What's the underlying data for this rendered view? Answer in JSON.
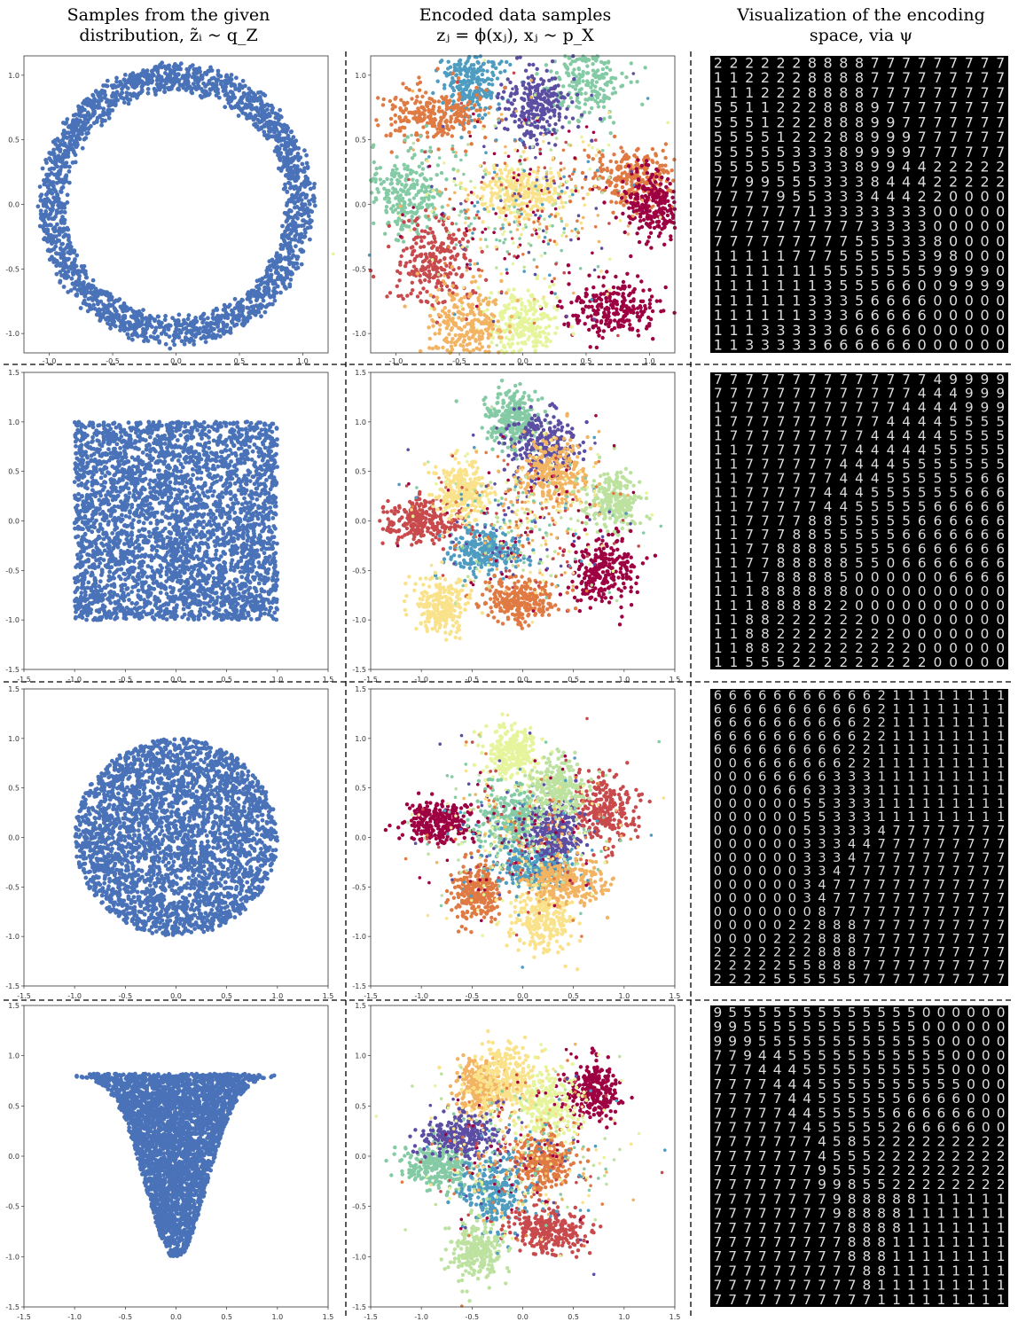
{
  "columns": [
    {
      "line1": "Samples from the given",
      "line2": "distribution, z̃ᵢ ~ q_Z"
    },
    {
      "line1": "Encoded data samples",
      "line2": "zⱼ = ϕ(xⱼ), xⱼ ~ p_X"
    },
    {
      "line1": "Visualization of the encoding",
      "line2": "space, via ψ"
    }
  ],
  "colors": {
    "prior": "#4a72b8",
    "classes": [
      "#9e0142",
      "#c84a4c",
      "#e07a43",
      "#f2b462",
      "#fae28b",
      "#e6f49c",
      "#bde2a0",
      "#84cba5",
      "#4f9cc1",
      "#5c4ea2"
    ],
    "digit_bg": "#000000",
    "digit_fg": "#dddddd"
  },
  "chart_data": [
    {
      "type": "scatter",
      "row": 1,
      "column": 1,
      "distribution": "ring",
      "xlim": [
        -1.2,
        1.2
      ],
      "ylim": [
        -1.15,
        1.15
      ],
      "xticks": [
        "-1.0",
        "-0.5",
        "0.0",
        "0.5",
        "1.0"
      ],
      "yticks": [
        "-1.0",
        "-0.5",
        "0.0",
        "0.5",
        "1.0"
      ],
      "ring_radius": [
        0.88,
        1.08
      ]
    },
    {
      "type": "scatter",
      "row": 1,
      "column": 2,
      "colored_by": "class",
      "xlim": [
        -1.2,
        1.2
      ],
      "ylim": [
        -1.15,
        1.15
      ],
      "xticks": [
        "-1.0",
        "-0.5",
        "0.0",
        "0.5",
        "1.0"
      ],
      "yticks": [
        "-1.0",
        "-0.5",
        "0.0",
        "0.5",
        "1.0"
      ],
      "clusters": [
        {
          "class": 8,
          "x": -0.4,
          "y": 0.95
        },
        {
          "class": 7,
          "x": 0.5,
          "y": 1.0
        },
        {
          "class": 2,
          "x": -0.7,
          "y": 0.7
        },
        {
          "class": 9,
          "x": 0.1,
          "y": 0.75
        },
        {
          "class": 7,
          "x": -0.9,
          "y": 0.1
        },
        {
          "class": 2,
          "x": 0.9,
          "y": 0.2
        },
        {
          "class": 0,
          "x": 1.05,
          "y": 0.0
        },
        {
          "class": 1,
          "x": -0.7,
          "y": -0.45
        },
        {
          "class": 0,
          "x": 0.7,
          "y": -0.8
        },
        {
          "class": 5,
          "x": 0.0,
          "y": -0.95
        },
        {
          "class": 3,
          "x": -0.45,
          "y": -0.95
        },
        {
          "class": 4,
          "x": 0.0,
          "y": 0.1
        }
      ]
    },
    {
      "type": "image_grid",
      "row": 1,
      "column": 3,
      "digit_rows": [
        "2222228888777777777",
        "1122228888777777777",
        "1112228888777777777",
        "5511222888977777777",
        "5551222888997777777",
        "5555122288999777777",
        "5555533389999777777",
        "5555553338994422222",
        "7799555333844422222",
        "7777955333444220000",
        "7777771333333300000",
        "7777777777333300000",
        "7777777775553380000",
        "1111177755555398000",
        "1111111555555599990",
        "1111111355566009999",
        "1111113335666600000",
        "1111113336666600000",
        "1113333366666000000",
        "1133333666666000000"
      ]
    },
    {
      "type": "scatter",
      "row": 2,
      "column": 1,
      "distribution": "uniform square",
      "xlim": [
        -1.5,
        1.5
      ],
      "ylim": [
        -1.5,
        1.5
      ],
      "xticks": [
        "-1.5",
        "-1.0",
        "-0.5",
        "0.0",
        "0.5",
        "1.0",
        "1.5"
      ],
      "yticks": [
        "-1.5",
        "-1.0",
        "-0.5",
        "0.0",
        "0.5",
        "1.0",
        "1.5"
      ]
    },
    {
      "type": "scatter",
      "row": 2,
      "column": 2,
      "colored_by": "class",
      "xlim": [
        -1.5,
        1.5
      ],
      "ylim": [
        -1.5,
        1.5
      ],
      "xticks": [
        "-1.5",
        "-1.0",
        "-0.5",
        "0.0",
        "0.5",
        "1.0",
        "1.5"
      ],
      "yticks": [
        "-1.5",
        "-1.0",
        "-0.5",
        "0.0",
        "0.5",
        "1.0",
        "1.5"
      ],
      "clusters": [
        {
          "class": 7,
          "x": -0.1,
          "y": 1.05
        },
        {
          "class": 9,
          "x": 0.2,
          "y": 0.75
        },
        {
          "class": 1,
          "x": -1.0,
          "y": 0.0
        },
        {
          "class": 4,
          "x": -0.6,
          "y": 0.3
        },
        {
          "class": 3,
          "x": 0.3,
          "y": 0.5
        },
        {
          "class": 8,
          "x": -0.4,
          "y": -0.3
        },
        {
          "class": 6,
          "x": 0.9,
          "y": 0.2
        },
        {
          "class": 0,
          "x": 0.8,
          "y": -0.5
        },
        {
          "class": 2,
          "x": -0.05,
          "y": -0.8
        },
        {
          "class": 4,
          "x": -0.8,
          "y": -0.85
        }
      ]
    },
    {
      "type": "image_grid",
      "row": 2,
      "column": 3,
      "digit_rows": [
        "7777777777777749999",
        "7777777777777444999",
        "1777777777774444999",
        "1777777777744445555",
        "1777777777444445555",
        "1177777774444455555",
        "1177777744445555555",
        "1177777744455555566",
        "1177777444555555666",
        "1177777445555566666",
        "1177778855555666666",
        "1177788555556666666",
        "1177888855556666666",
        "1177888885506666666",
        "1117888850000006666",
        "1118888880000000000",
        "1118888220000000000",
        "1188222222000000000",
        "1188222222220000000",
        "1188222222222000000",
        "1155522222222200000"
      ]
    },
    {
      "type": "scatter",
      "row": 3,
      "column": 1,
      "distribution": "uniform disk",
      "xlim": [
        -1.5,
        1.5
      ],
      "ylim": [
        -1.5,
        1.5
      ],
      "xticks": [
        "-1.5",
        "-1.0",
        "-0.5",
        "0.0",
        "0.5",
        "1.0",
        "1.5"
      ],
      "yticks": [
        "-1.5",
        "-1.0",
        "-0.5",
        "0.0",
        "0.5",
        "1.0",
        "1.5"
      ]
    },
    {
      "type": "scatter",
      "row": 3,
      "column": 2,
      "colored_by": "class",
      "xlim": [
        -1.5,
        1.5
      ],
      "ylim": [
        -1.5,
        1.5
      ],
      "xticks": [
        "-1.5",
        "-1.0",
        "-0.5",
        "0.0",
        "0.5",
        "1.0",
        "1.5"
      ],
      "yticks": [
        "-1.5",
        "-1.0",
        "-0.5",
        "0.0",
        "0.5",
        "1.0",
        "1.5"
      ],
      "clusters": [
        {
          "class": 5,
          "x": -0.1,
          "y": 0.85
        },
        {
          "class": 1,
          "x": 0.8,
          "y": 0.3
        },
        {
          "class": 0,
          "x": -0.85,
          "y": 0.15
        },
        {
          "class": 2,
          "x": -0.45,
          "y": -0.55
        },
        {
          "class": 7,
          "x": -0.1,
          "y": 0.2
        },
        {
          "class": 8,
          "x": 0.15,
          "y": -0.3
        },
        {
          "class": 9,
          "x": 0.3,
          "y": 0.05
        },
        {
          "class": 4,
          "x": 0.2,
          "y": -0.85
        },
        {
          "class": 3,
          "x": 0.45,
          "y": -0.45
        },
        {
          "class": 6,
          "x": 0.35,
          "y": 0.5
        }
      ]
    },
    {
      "type": "image_grid",
      "row": 3,
      "column": 3,
      "digit_rows": [
        "66666666666211111111",
        "66666666666211111111",
        "66666666662211111111",
        "66666666662211111111",
        "66666666622111111111",
        "00666666622111111111",
        "00066666333111111111",
        "00006663333111111111",
        "00000055333111111111",
        "00000055333111111111",
        "00000053333477777777",
        "00000033344777777777",
        "00000033347777777777",
        "00000033477777777777",
        "00000034777777777777",
        "00000034777777777777",
        "00000008777777777777",
        "00000228887777777777",
        "00002228887777777777",
        "22222228887777777777",
        "22222558887777777777",
        "22225555557777777777"
      ]
    },
    {
      "type": "scatter",
      "row": 4,
      "column": 1,
      "distribution": "parabolic region",
      "xlim": [
        -1.5,
        1.5
      ],
      "ylim": [
        -1.5,
        1.5
      ],
      "xticks": [
        "-1.5",
        "-1.0",
        "-0.5",
        "0.0",
        "0.5",
        "1.0",
        "1.5"
      ],
      "yticks": [
        "-1.5",
        "-1.0",
        "-0.5",
        "0.0",
        "0.5",
        "1.0",
        "1.5"
      ],
      "top_y": 0.82,
      "bottom_y": -1.0,
      "half_width": 1.0
    },
    {
      "type": "scatter",
      "row": 4,
      "column": 2,
      "colored_by": "class",
      "xlim": [
        -1.5,
        1.5
      ],
      "ylim": [
        -1.5,
        1.5
      ],
      "xticks": [
        "-1.5",
        "-1.0",
        "-0.5",
        "0.0",
        "0.5",
        "1.0",
        "1.5"
      ],
      "yticks": [
        "-1.5",
        "-1.0",
        "-0.5",
        "0.0",
        "0.5",
        "1.0",
        "1.5"
      ],
      "clusters": [
        {
          "class": 0,
          "x": 0.7,
          "y": 0.65
        },
        {
          "class": 5,
          "x": 0.25,
          "y": 0.5
        },
        {
          "class": 7,
          "x": -0.85,
          "y": -0.1
        },
        {
          "class": 3,
          "x": -0.4,
          "y": 0.7
        },
        {
          "class": 4,
          "x": -0.2,
          "y": 0.8
        },
        {
          "class": 9,
          "x": -0.6,
          "y": 0.2
        },
        {
          "class": 2,
          "x": 0.2,
          "y": -0.05
        },
        {
          "class": 8,
          "x": -0.3,
          "y": -0.35
        },
        {
          "class": 1,
          "x": 0.25,
          "y": -0.75
        },
        {
          "class": 6,
          "x": -0.45,
          "y": -0.95
        }
      ]
    },
    {
      "type": "image_grid",
      "row": 4,
      "column": 3,
      "digit_rows": [
        "95555555555555000000",
        "99555555555555000000",
        "99955555555555500000",
        "77944555555555550000",
        "77744455555555550000",
        "77774445555555555000",
        "77777445555556666000",
        "77777445555566666600",
        "77777745555526666600",
        "77777774585222222222",
        "77777774555222222222",
        "77777779555222222222",
        "77777779985522222222",
        "77777777988888111111",
        "77777777988881111111",
        "77777777788881111111",
        "77777777788811111111",
        "77777777788811111111",
        "77777777778811111111",
        "77777777778111111111",
        "77777777777111111111"
      ]
    }
  ]
}
